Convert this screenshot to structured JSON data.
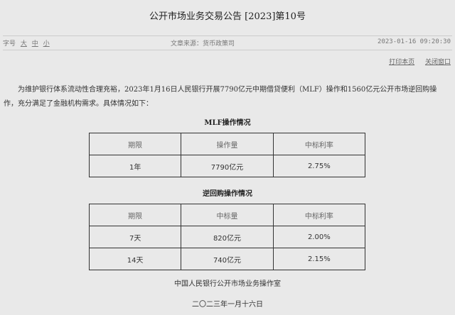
{
  "title": "公开市场业务交易公告 [2023]第10号",
  "meta": {
    "font_size_label": "字号",
    "sizes": [
      "大",
      "中",
      "小"
    ],
    "source": "文章来源：货币政策司",
    "datetime": "2023-01-16 09:20:30"
  },
  "links": {
    "print": "打印本页",
    "close": "关闭窗口"
  },
  "paragraph": "为维护银行体系流动性合理充裕，2023年1月16日人民银行开展7790亿元中期借贷便利（MLF）操作和1560亿元公开市场逆回购操作，充分满足了金融机构需求。具体情况如下：",
  "mlf": {
    "caption": "MLF操作情况",
    "headers": [
      "期限",
      "操作量",
      "中标利率"
    ],
    "rows": [
      [
        "1年",
        "7790亿元",
        "2.75%"
      ]
    ]
  },
  "repo": {
    "caption": "逆回购操作情况",
    "headers": [
      "期限",
      "中标量",
      "中标利率"
    ],
    "rows": [
      [
        "7天",
        "820亿元",
        "2.00%"
      ],
      [
        "14天",
        "740亿元",
        "2.15%"
      ]
    ]
  },
  "footer": {
    "org": "中国人民银行公开市场业务操作室",
    "date": "二〇二三年一月十六日"
  }
}
